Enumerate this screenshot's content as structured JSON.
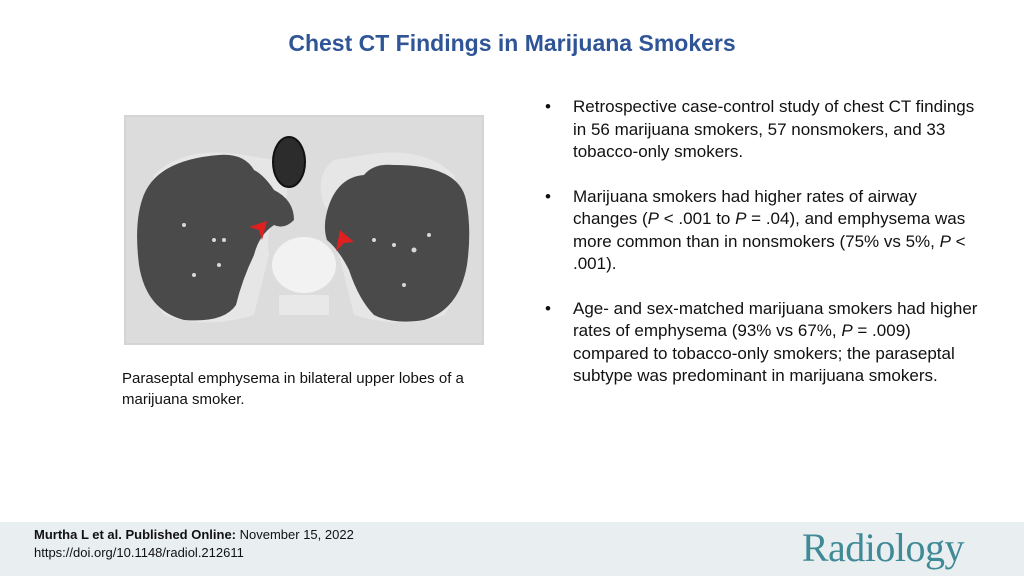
{
  "title": "Chest CT Findings in Marijuana Smokers",
  "figure": {
    "caption": "Paraseptal emphysema in bilateral upper lobes of a marijuana smoker.",
    "arrow_color": "#e02020"
  },
  "bullets": [
    {
      "parts": [
        "Retrospective case-control study of chest CT findings in 56 marijuana smokers, 57 nonsmokers, and 33 tobacco-only smokers."
      ]
    },
    {
      "parts": [
        "Marijuana smokers had higher rates of airway changes (",
        "P",
        " < .001 to ",
        "P",
        " = .04), and emphysema was more common than in nonsmokers (75% vs 5%, ",
        "P",
        " < .001)."
      ]
    },
    {
      "parts": [
        "Age- and sex-matched marijuana smokers had higher rates of emphysema  (93% vs 67%, ",
        "P",
        " = .009) compared to tobacco-only smokers; the paraseptal subtype was predominant in marijuana smokers."
      ]
    }
  ],
  "footer": {
    "authors": "Murtha L et al. Published Online:",
    "date": " November 15, 2022",
    "doi": "https://doi.org/10.1148/radiol.212611",
    "logo": "Radiology"
  },
  "colors": {
    "title": "#2f5597",
    "footer_bg": "#e9eff1",
    "logo": "#3f8a96"
  }
}
